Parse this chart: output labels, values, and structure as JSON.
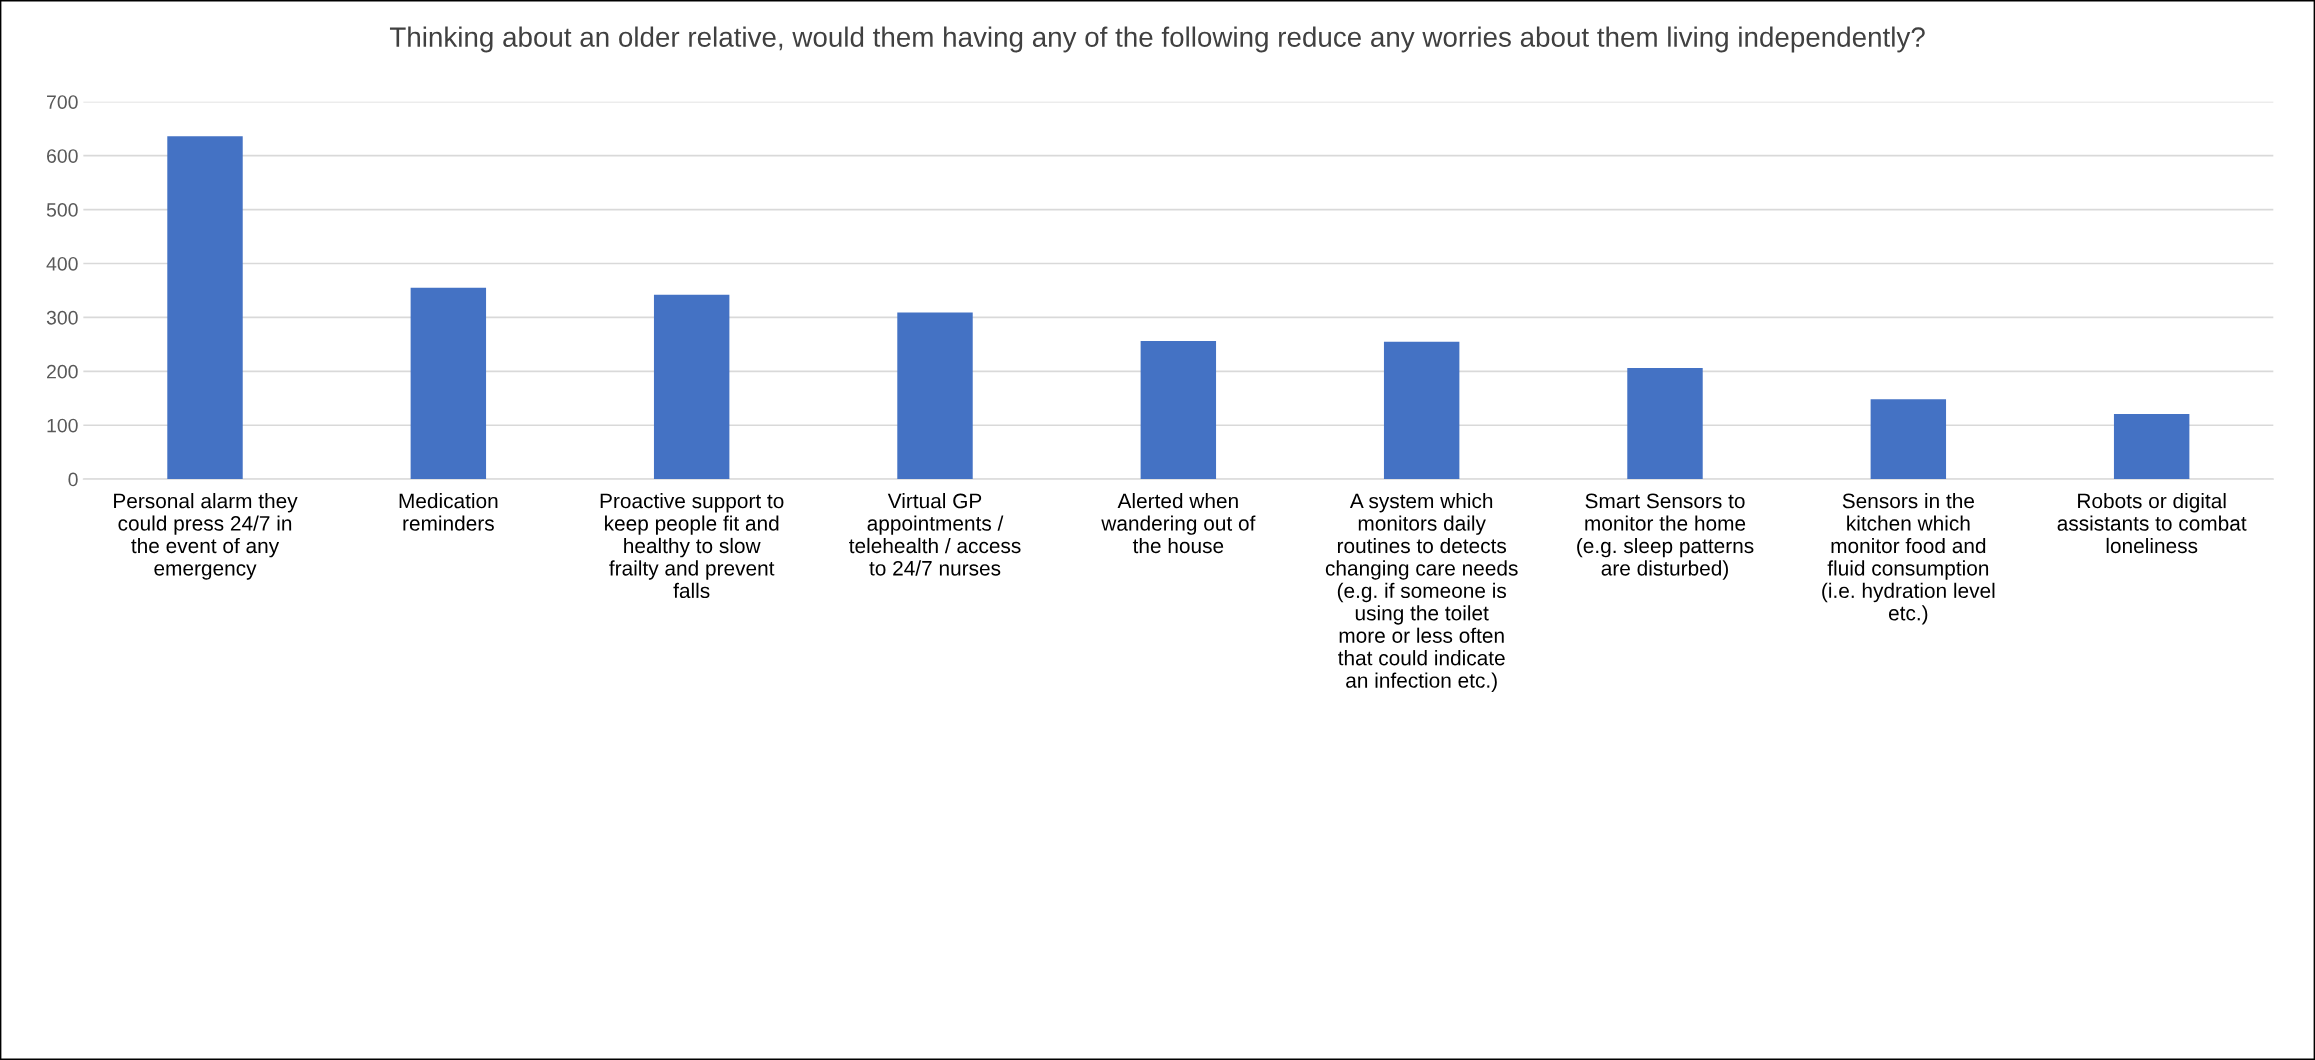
{
  "chart_data": {
    "type": "bar",
    "title": "Thinking about an older relative, would them having any of the following reduce any worries about them living independently?",
    "categories": [
      "Personal alarm they\ncould press 24/7 in\nthe event of any\nemergency",
      "Medication\nreminders",
      "Proactive support to\nkeep people fit and\nhealthy to slow\nfrailty and prevent\nfalls",
      "Virtual GP\nappointments /\ntelehealth / access\nto 24/7 nurses",
      "Alerted when\nwandering out of\nthe house",
      "A system which\nmonitors daily\nroutines to detects\nchanging care needs\n(e.g. if someone is\nusing the toilet\nmore or less often\nthat could indicate\nan infection etc.)",
      "Smart Sensors to\nmonitor the home\n(e.g. sleep patterns\nare disturbed)",
      "Sensors in the\nkitchen which\nmonitor food and\nfluid consumption\n(i.e. hydration level\netc.)",
      "Robots or digital\nassistants to combat\nloneliness"
    ],
    "values": [
      636,
      355,
      342,
      309,
      256,
      255,
      206,
      148,
      121
    ],
    "color": "#4472c4",
    "ylim": [
      0,
      700
    ],
    "yticks": [
      0,
      100,
      200,
      300,
      400,
      500,
      600,
      700
    ],
    "grid": "y",
    "legend": false
  }
}
